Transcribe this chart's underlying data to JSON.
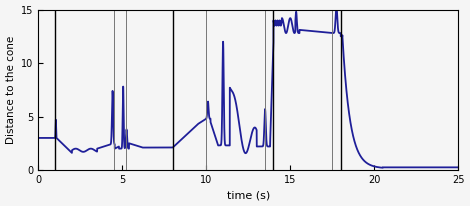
{
  "xlabel": "time (s)",
  "ylabel": "Distance to the cone",
  "xlim": [
    0,
    25
  ],
  "ylim": [
    0,
    15
  ],
  "yticks": [
    0,
    5,
    10,
    15
  ],
  "xticks": [
    0,
    5,
    10,
    15,
    20,
    25
  ],
  "line_color": "#1f1f99",
  "line_width": 1.3,
  "vlines_black": [
    1.0,
    8.0,
    14.0,
    18.0
  ],
  "vlines_gray": [
    4.5,
    5.2,
    10.0,
    13.5,
    17.5
  ],
  "background_color": "#f5f5f5"
}
